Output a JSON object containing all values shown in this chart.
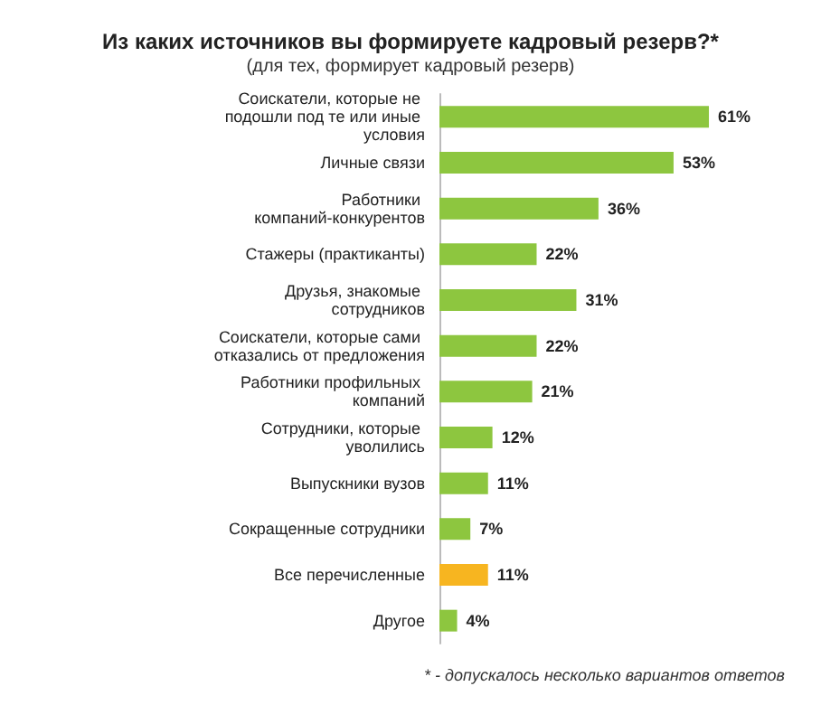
{
  "chart_data": {
    "type": "bar",
    "orientation": "horizontal",
    "title": "Из каких источников вы формируете кадровый резерв?*",
    "subtitle": "(для тех, формирует кадровый резерв)",
    "categories": [
      "Соискатели, которые не подошли под те или иные условия",
      "Личные связи",
      "Работники компаний-конкурентов",
      "Стажеры (практиканты)",
      "Друзья, знакомые сотрудников",
      "Соискатели, которые сами отказались от предложения",
      "Работники профильных компаний",
      "Сотрудники, которые уволились",
      "Выпускники вузов",
      "Сокращенные сотрудники",
      "Все перечисленные",
      "Другое"
    ],
    "values": [
      61,
      53,
      36,
      22,
      31,
      22,
      21,
      12,
      11,
      7,
      11,
      4
    ],
    "value_labels": [
      "61%",
      "53%",
      "36%",
      "22%",
      "31%",
      "22%",
      "21%",
      "12%",
      "11%",
      "7%",
      "11%",
      "4%"
    ],
    "colors": [
      "#8dc63f",
      "#8dc63f",
      "#8dc63f",
      "#8dc63f",
      "#8dc63f",
      "#8dc63f",
      "#8dc63f",
      "#8dc63f",
      "#8dc63f",
      "#8dc63f",
      "#f7b520",
      "#8dc63f"
    ],
    "annotations": [
      "* - допускалось несколько вариантов ответов"
    ]
  }
}
